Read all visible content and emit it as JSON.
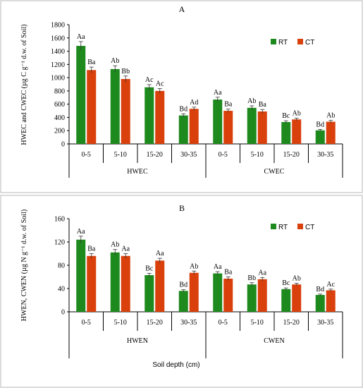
{
  "chart_data": [
    {
      "type": "bar",
      "title": "A",
      "ylabel": "HWEC and CWEC (µg C g⁻¹ d.w. of Soil)",
      "ylim": [
        0,
        1800
      ],
      "yticks": [
        0,
        200,
        400,
        600,
        800,
        1000,
        1200,
        1400,
        1600,
        1800
      ],
      "groups": [
        {
          "name": "HWEC",
          "categories": [
            "0-5",
            "5-10",
            "15-20",
            "30-35"
          ]
        },
        {
          "name": "CWEC",
          "categories": [
            "0-5",
            "5-10",
            "15-20",
            "30-35"
          ]
        }
      ],
      "legend": {
        "position": "top-right",
        "entries": [
          "RT",
          "CT"
        ]
      },
      "series": [
        {
          "name": "RT",
          "color": "#1e8a1e",
          "values": [
            1480,
            1130,
            855,
            430,
            670,
            545,
            330,
            205
          ],
          "errors": [
            65,
            50,
            40,
            25,
            35,
            30,
            20,
            15
          ],
          "labels": [
            "Aa",
            "Ab",
            "Ac",
            "Bd",
            "Aa",
            "Ab",
            "Bc",
            "Bd"
          ]
        },
        {
          "name": "CT",
          "color": "#d9400b",
          "values": [
            1115,
            980,
            800,
            530,
            500,
            490,
            370,
            335
          ],
          "errors": [
            45,
            45,
            35,
            25,
            25,
            30,
            20,
            20
          ],
          "labels": [
            "Ba",
            "Bb",
            "Ac",
            "Ad",
            "Ba",
            "Ba",
            "Ab",
            "Ab"
          ]
        }
      ]
    },
    {
      "type": "bar",
      "title": "B",
      "ylabel": "HWEN, CWEN (µg N g⁻¹ d.w. of Soil)",
      "xlabel": "Soil depth (cm)",
      "ylim": [
        0,
        160
      ],
      "yticks": [
        0,
        40,
        80,
        120,
        160
      ],
      "groups": [
        {
          "name": "HWEN",
          "categories": [
            "0-5",
            "5-10",
            "15-20",
            "30-35"
          ]
        },
        {
          "name": "CWEN",
          "categories": [
            "0-5",
            "5-10",
            "15-20",
            "30-35"
          ]
        }
      ],
      "legend": {
        "position": "top-right",
        "entries": [
          "RT",
          "CT"
        ]
      },
      "series": [
        {
          "name": "RT",
          "color": "#1e8a1e",
          "values": [
            124,
            102,
            63,
            36,
            66,
            47,
            39,
            29
          ],
          "errors": [
            6,
            5,
            3,
            2,
            3,
            3,
            2,
            1.5
          ],
          "labels": [
            "Aa",
            "Ab",
            "Bc",
            "Bd",
            "Aa",
            "Bb",
            "Bc",
            "Bd"
          ]
        },
        {
          "name": "CT",
          "color": "#d9400b",
          "values": [
            96,
            96,
            88,
            67,
            57,
            56,
            47,
            37
          ],
          "errors": [
            4,
            4,
            4,
            3,
            3,
            3,
            2,
            2
          ],
          "labels": [
            "Ba",
            "Aa",
            "Aa",
            "Ab",
            "Ba",
            "Aa",
            "Ab",
            "Ac"
          ]
        }
      ]
    }
  ]
}
